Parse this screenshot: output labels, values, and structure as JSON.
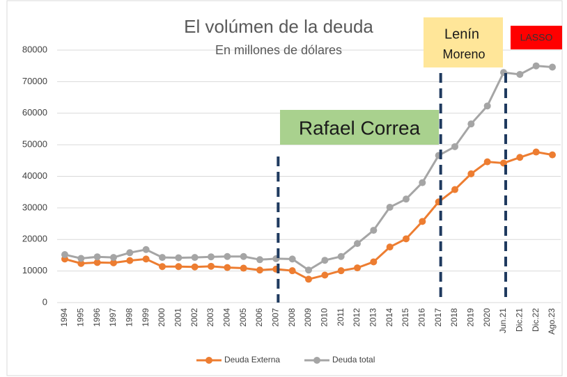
{
  "chart_data": {
    "type": "line",
    "title": "El volúmen de la deuda",
    "subtitle": "En millones de dólares",
    "categories": [
      "1994",
      "1995",
      "1996",
      "1997",
      "1998",
      "1999",
      "2000",
      "2001",
      "2002",
      "2003",
      "2004",
      "2005",
      "2006",
      "2007",
      "2008",
      "2009",
      "2010",
      "2011",
      "2012",
      "2013",
      "2014",
      "2015",
      "2016",
      "2017",
      "2018",
      "2019",
      "2020",
      "Jun.21",
      "Dic.21",
      "Dic.22",
      "Ago.23"
    ],
    "series": [
      {
        "name": "Deuda Externa",
        "color": "#ed7d31",
        "values": [
          13800,
          12400,
          12700,
          12600,
          13300,
          13800,
          11400,
          11400,
          11300,
          11500,
          11100,
          10900,
          10300,
          10600,
          10100,
          7400,
          8700,
          10100,
          11000,
          12900,
          17600,
          20200,
          25700,
          31900,
          35800,
          40800,
          44600,
          44200,
          46000,
          47700,
          46800
        ]
      },
      {
        "name": "Deuda total",
        "color": "#a5a5a5",
        "values": [
          15200,
          14000,
          14500,
          14300,
          15800,
          16800,
          14300,
          14200,
          14300,
          14500,
          14600,
          14600,
          13600,
          13900,
          13800,
          10300,
          13400,
          14600,
          18700,
          22900,
          30200,
          32800,
          38000,
          46600,
          49400,
          56600,
          62300,
          72900,
          72300,
          75000,
          74600
        ]
      }
    ],
    "ylim": [
      0,
      80000
    ],
    "yticks": [
      0,
      10000,
      20000,
      30000,
      40000,
      50000,
      60000,
      70000,
      80000
    ],
    "grid": true,
    "legend": "bottom",
    "annotations": {
      "correa": {
        "text": "Rafael Correa",
        "color": "#a9d18e"
      },
      "moreno": {
        "lines": [
          "Lenín",
          "Moreno"
        ],
        "color": "#ffe699"
      },
      "lasso": {
        "text": "LASSO",
        "color": "#ff0000"
      }
    },
    "vlines": [
      "2007",
      "2017",
      "Jun.21"
    ]
  }
}
